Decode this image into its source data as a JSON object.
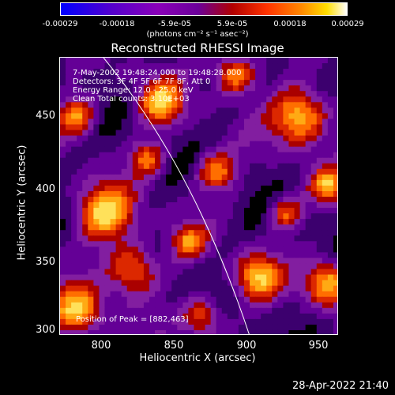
{
  "colorbar": {
    "tick_labels": [
      "-0.00029",
      "-0.00018",
      "-5.9e-05",
      "5.9e-05",
      "0.00018",
      "0.00029"
    ],
    "units": "(photons cm⁻² s⁻¹ asec⁻²)"
  },
  "title": "Reconstructed RHESSI Image",
  "info": {
    "time": "7-May-2002 19:48:24.000 to 19:48:28.000",
    "detectors": "Detectors: 3F 4F 5F 6F 7F 8F, Att 0",
    "energy": "Energy Range: 12.0 - 25.0 keV",
    "clean": "Clean    Total counts: 3.10E+03",
    "peak": "Position of Peak = [882,463]"
  },
  "axes": {
    "xlabel": "Heliocentric X (arcsec)",
    "ylabel": "Heliocentric Y (arcsec)",
    "x_ticks": [
      "800",
      "850",
      "900",
      "950"
    ],
    "y_ticks": [
      "450",
      "400",
      "350",
      "300"
    ],
    "xlim": [
      770,
      962
    ],
    "ylim": [
      298,
      490
    ]
  },
  "timestamp": "28-Apr-2022 21:40",
  "colors": {
    "background": "#000000",
    "text": "#ffffff",
    "limb": "#ffffff"
  }
}
